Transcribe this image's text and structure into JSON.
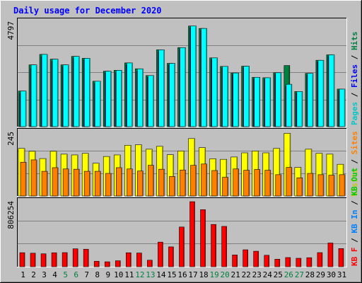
{
  "chart_data": {
    "type": "bar",
    "title": "Daily usage for December 2020",
    "categories": [
      "1",
      "2",
      "3",
      "4",
      "5",
      "6",
      "7",
      "8",
      "9",
      "10",
      "11",
      "12",
      "13",
      "14",
      "15",
      "16",
      "17",
      "18",
      "19",
      "20",
      "21",
      "22",
      "23",
      "24",
      "25",
      "26",
      "27",
      "28",
      "29",
      "30",
      "31"
    ],
    "weekend_days": [
      "5",
      "6",
      "12",
      "13",
      "19",
      "20",
      "26",
      "27"
    ],
    "panels": [
      {
        "id": "hits",
        "max_label": "4797",
        "ylim": [
          0,
          4797
        ],
        "series": [
          {
            "name": "Pages",
            "color": "#00ffff",
            "values": [
              1630,
              2830,
              3310,
              3090,
              2830,
              3220,
              3130,
              2080,
              2540,
              2580,
              2920,
              2650,
              2340,
              3520,
              2900,
              3620,
              4610,
              4500,
              3150,
              2760,
              2460,
              2770,
              2260,
              2240,
              2470,
              1940,
              1610,
              2440,
              3040,
              3290,
              1720
            ]
          },
          {
            "name": "Files",
            "color": "#0000ff",
            "values": [
              1520,
              2660,
              3200,
              3000,
              2750,
              3140,
              3060,
              1990,
              2470,
              2490,
              2830,
              2540,
              2260,
              3440,
              2830,
              3550,
              4530,
              4410,
              3080,
              2690,
              2390,
              2700,
              2190,
              2170,
              2400,
              1850,
              1530,
              2370,
              2970,
              3220,
              1650
            ]
          },
          {
            "name": "Hits",
            "color": "#008040",
            "values": [
              1630,
              2830,
              3310,
              3090,
              2830,
              3220,
              3130,
              2080,
              2540,
              2580,
              2920,
              2650,
              2340,
              3520,
              2900,
              3620,
              4610,
              4500,
              3150,
              2760,
              2460,
              2770,
              2260,
              2240,
              2470,
              2800,
              1610,
              2440,
              3040,
              3290,
              1720
            ]
          }
        ]
      },
      {
        "id": "visits",
        "max_label": "245",
        "ylim": [
          0,
          245
        ],
        "series": [
          {
            "name": "Visits",
            "color": "#ffff00",
            "values": [
              183,
              172,
              144,
              172,
              161,
              158,
              164,
              126,
              152,
              158,
              195,
              197,
              180,
              191,
              159,
              173,
              221,
              186,
              143,
              141,
              150,
              166,
              173,
              166,
              183,
              241,
              110,
              180,
              164,
              161,
              122
            ]
          },
          {
            "name": "Sites",
            "color": "#ff8000",
            "values": [
              130,
              139,
              95,
              109,
              104,
              103,
              95,
              95,
              87,
              109,
              104,
              96,
              118,
              103,
              75,
              100,
              118,
              123,
              98,
              72,
              104,
              99,
              102,
              99,
              82,
              110,
              70,
              87,
              82,
              80,
              82
            ]
          }
        ]
      },
      {
        "id": "kbytes",
        "max_label": "806254",
        "ylim": [
          0,
          806254
        ],
        "series": [
          {
            "name": "KB F",
            "color": "#ff0000",
            "values": [
              174000,
              168000,
              160000,
              173000,
              175000,
              222000,
              217000,
              68000,
              61000,
              74000,
              173000,
              170000,
              81000,
              305000,
              246000,
              492000,
              806000,
              707000,
              524000,
              500000,
              146000,
              210000,
              192000,
              142000,
              93000,
              114000,
              105000,
              112000,
              175000,
              294000,
              225000
            ]
          },
          {
            "name": "KB In",
            "color": "#0080ff",
            "values": []
          },
          {
            "name": "KB Out",
            "color": "#00cc00",
            "values": []
          }
        ]
      }
    ],
    "legend": {
      "placement": "right",
      "groups": [
        [
          {
            "text": "Pages",
            "color": "#00c8c8"
          },
          {
            "text": " / ",
            "color": "#000000"
          },
          {
            "text": "Files",
            "color": "#0000ff"
          },
          {
            "text": " / ",
            "color": "#000000"
          },
          {
            "text": "Hits",
            "color": "#008040"
          }
        ],
        [
          {
            "text": "Visits",
            "color": "#c8c800"
          },
          {
            "text": " / ",
            "color": "#000000"
          },
          {
            "text": "Sites",
            "color": "#ff8000"
          }
        ],
        [
          {
            "text": "KB F",
            "color": "#ff0000"
          },
          {
            "text": " / ",
            "color": "#000000"
          },
          {
            "text": "KB In",
            "color": "#0080ff"
          },
          {
            "text": " / ",
            "color": "#000000"
          },
          {
            "text": "KB Out",
            "color": "#00cc00"
          }
        ]
      ]
    },
    "colors": {
      "background": "#c0c0c0",
      "title": "#0000ff",
      "weekday_label": "#000000",
      "weekend_label": "#008040"
    },
    "grid": true
  }
}
